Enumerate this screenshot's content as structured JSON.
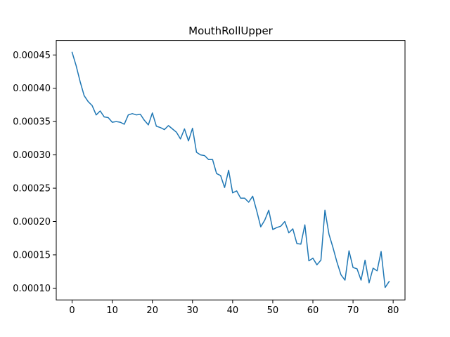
{
  "chart_data": {
    "type": "line",
    "title": "MouthRollUpper",
    "xlabel": "",
    "ylabel": "",
    "xlim": [
      -3.95,
      82.95
    ],
    "ylim": [
      8.23e-05,
      0.0004718
    ],
    "x_ticks": [
      0,
      10,
      20,
      30,
      40,
      50,
      60,
      70,
      80
    ],
    "y_ticks": [
      0.0001,
      0.00015,
      0.0002,
      0.00025,
      0.0003,
      0.00035,
      0.0004,
      0.00045
    ],
    "x_tick_labels": [
      "0",
      "10",
      "20",
      "30",
      "40",
      "50",
      "60",
      "70",
      "80"
    ],
    "y_tick_labels": [
      "0.00010",
      "0.00015",
      "0.00020",
      "0.00025",
      "0.00030",
      "0.00035",
      "0.00040",
      "0.00045"
    ],
    "grid": false,
    "legend": "none",
    "series": [
      {
        "color": "#1f77b4",
        "x": [
          0,
          1,
          2,
          3,
          4,
          5,
          6,
          7,
          8,
          9,
          10,
          11,
          12,
          13,
          14,
          15,
          16,
          17,
          18,
          19,
          20,
          21,
          22,
          23,
          24,
          25,
          26,
          27,
          28,
          29,
          30,
          31,
          32,
          33,
          34,
          35,
          36,
          37,
          38,
          39,
          40,
          41,
          42,
          43,
          44,
          45,
          46,
          47,
          48,
          49,
          50,
          51,
          52,
          53,
          54,
          55,
          56,
          57,
          58,
          59,
          60,
          61,
          62,
          63,
          64,
          65,
          66,
          67,
          68,
          69,
          70,
          71,
          72,
          73,
          74,
          75,
          76,
          77,
          78,
          79
        ],
        "values": [
          0.000454,
          0.000434,
          0.00041,
          0.000389,
          0.00038,
          0.000374,
          0.00036,
          0.000366,
          0.000357,
          0.000356,
          0.000349,
          0.00035,
          0.000349,
          0.000346,
          0.00036,
          0.000362,
          0.00036,
          0.000361,
          0.000352,
          0.000345,
          0.000363,
          0.000343,
          0.000341,
          0.000338,
          0.000344,
          0.000339,
          0.000334,
          0.000324,
          0.000339,
          0.000321,
          0.00034,
          0.000304,
          0.0003,
          0.000299,
          0.000293,
          0.000293,
          0.000272,
          0.000269,
          0.000251,
          0.000277,
          0.000243,
          0.000246,
          0.000235,
          0.000235,
          0.000229,
          0.000238,
          0.000216,
          0.000192,
          0.000202,
          0.000217,
          0.000188,
          0.000191,
          0.000193,
          0.0002,
          0.000183,
          0.000189,
          0.000167,
          0.000166,
          0.000195,
          0.000141,
          0.000145,
          0.000135,
          0.000142,
          0.000217,
          0.000181,
          0.000161,
          0.000139,
          0.00012,
          0.000112,
          0.000156,
          0.000131,
          0.000129,
          0.000112,
          0.000142,
          0.000108,
          0.00013,
          0.000126,
          0.000155,
          0.000101,
          0.00011
        ]
      }
    ]
  }
}
